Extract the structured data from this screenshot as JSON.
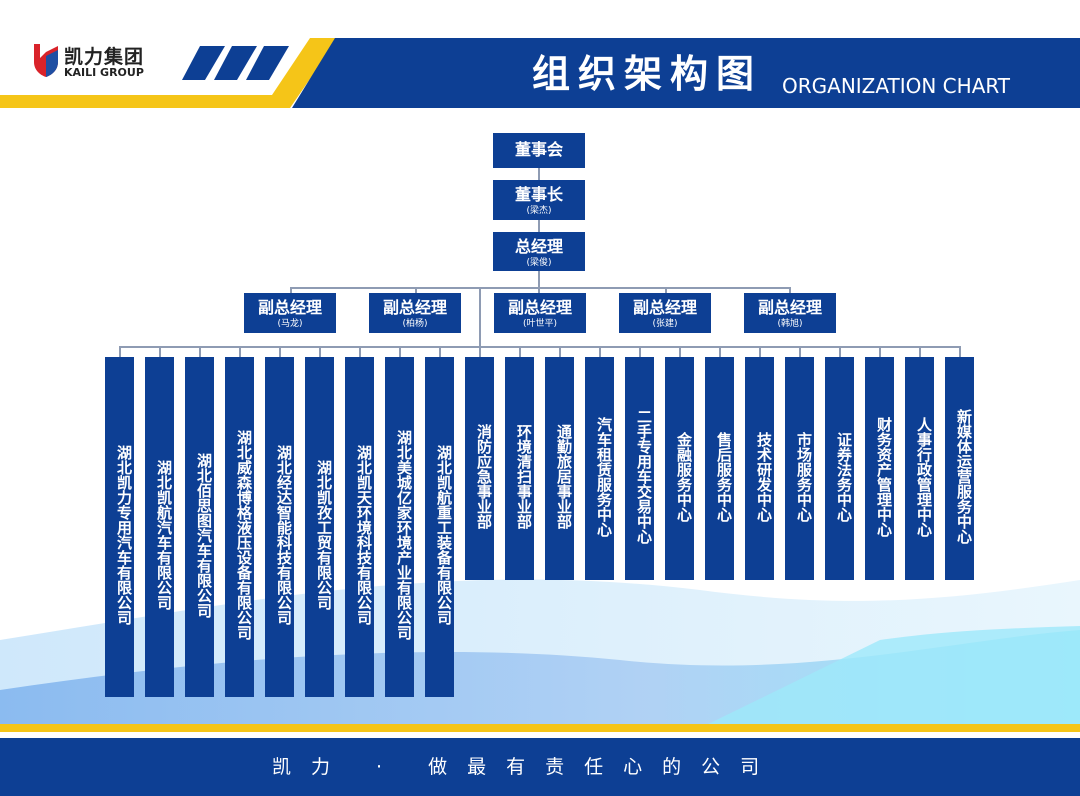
{
  "header": {
    "logo_cn": "凯力集团",
    "logo_en": "KAILI GROUP",
    "title_cn": "组织架构图",
    "title_en": "ORGANIZATION CHART"
  },
  "colors": {
    "brand_blue": "#0d3f94",
    "accent_yellow": "#f5c518",
    "connector": "#8e9bb3"
  },
  "org": {
    "board": {
      "title": "董事会"
    },
    "chairman": {
      "title": "董事长",
      "name": "(梁杰)"
    },
    "general_manager": {
      "title": "总经理",
      "name": "(梁俊)"
    },
    "vice_managers": [
      {
        "title": "副总经理",
        "name": "(马龙)"
      },
      {
        "title": "副总经理",
        "name": "(柏杨)"
      },
      {
        "title": "副总经理",
        "name": "(叶世平)"
      },
      {
        "title": "副总经理",
        "name": "(张建)"
      },
      {
        "title": "副总经理",
        "name": "(韩旭)"
      }
    ],
    "subsidiaries": [
      "湖北凯力专用汽车有限公司",
      "湖北凯航汽车有限公司",
      "湖北佰思图汽车有限公司",
      "湖北威森博格液压设备有限公司",
      "湖北经达智能科技有限公司",
      "湖北凯孜工贸有限公司",
      "湖北凯天环境科技有限公司",
      "湖北美城亿家环境产业有限公司",
      "湖北凯航重工装备有限公司"
    ],
    "departments": [
      "消防应急事业部",
      "环境清扫事业部",
      "通勤旅居事业部",
      "汽车租赁服务中心",
      "二手专用车交易中心",
      "金融服务中心",
      "售后服务中心",
      "技术研发中心",
      "市场服务中心",
      "证券法务中心",
      "财务资产管理中心",
      "人事行政管理中心",
      "新媒体运营服务中心"
    ]
  },
  "footer": {
    "slogan": "凯力 · 做最有责任心的公司"
  }
}
